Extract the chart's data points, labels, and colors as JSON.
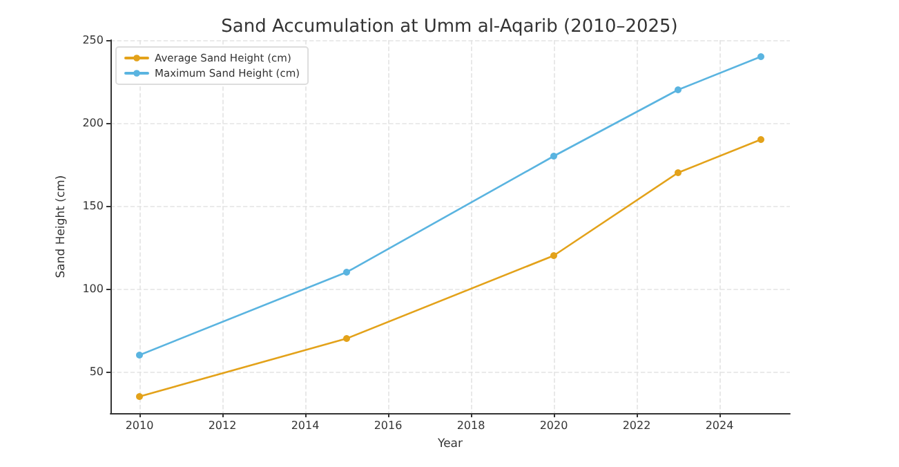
{
  "chart_data": {
    "type": "line",
    "title": "Sand Accumulation at Umm al-Aqarib (2010–2025)",
    "xlabel": "Year",
    "ylabel": "Sand Height (cm)",
    "x": [
      2010,
      2015,
      2020,
      2023,
      2025
    ],
    "series": [
      {
        "name": "Average Sand Height (cm)",
        "color": "#e3a21a",
        "values": [
          35,
          70,
          120,
          170,
          190
        ]
      },
      {
        "name": "Maximum Sand Height (cm)",
        "color": "#5ab4e0",
        "values": [
          60,
          110,
          180,
          220,
          240
        ]
      }
    ],
    "xlim": [
      2009.3,
      2025.7
    ],
    "xticks": [
      2010,
      2012,
      2014,
      2016,
      2018,
      2020,
      2022,
      2024
    ],
    "ylim": [
      25,
      250
    ],
    "yticks": [
      50,
      100,
      150,
      200,
      250
    ],
    "grid": true,
    "legend": "top left",
    "marker": "circle",
    "line_style": "solid"
  }
}
